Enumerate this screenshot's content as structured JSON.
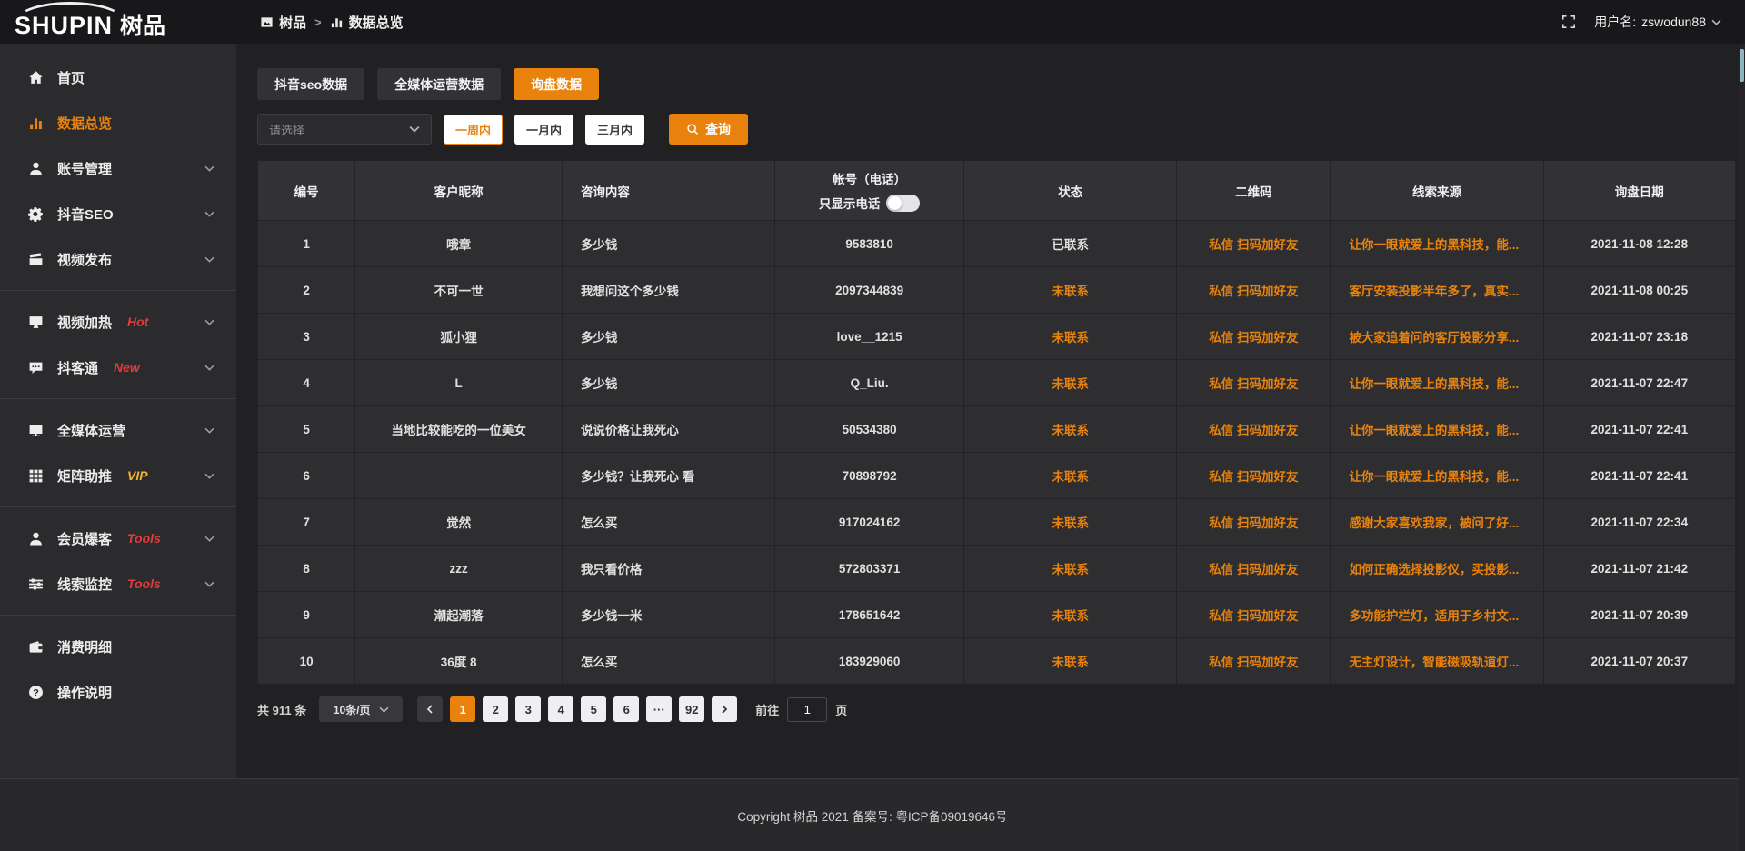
{
  "header": {
    "logo_text": "SHUPIN",
    "logo_cn": "树品",
    "breadcrumb": {
      "root": "树品",
      "sep": ">",
      "current": "数据总览"
    },
    "username_label": "用户名:",
    "username": "zswodun88"
  },
  "colors": {
    "accent_orange": "#e8820d",
    "badge_red": "#e23b3b",
    "badge_yellow": "#efb336"
  },
  "sidebar": {
    "items": [
      {
        "label": "首页",
        "icon": "home-icon"
      },
      {
        "label": "数据总览",
        "icon": "chart-icon",
        "active": true
      },
      {
        "label": "账号管理",
        "icon": "user-icon",
        "chevron": true
      },
      {
        "label": "抖音SEO",
        "icon": "gear-icon",
        "chevron": true
      },
      {
        "label": "视频发布",
        "icon": "video-icon",
        "chevron": true,
        "divider_after": true
      },
      {
        "label": "视频加热",
        "icon": "heat-icon",
        "badge": "Hot",
        "badge_color": "#e23b3b",
        "chevron": true
      },
      {
        "label": "抖客通",
        "icon": "chat-icon",
        "badge": "New",
        "badge_color": "#e23b3b",
        "chevron": true,
        "divider_after": true
      },
      {
        "label": "全媒体运营",
        "icon": "monitor-icon",
        "chevron": true
      },
      {
        "label": "矩阵助推",
        "icon": "grid-icon",
        "badge": "VIP",
        "badge_color": "#efb336",
        "chevron": true,
        "divider_after": true
      },
      {
        "label": "会员爆客",
        "icon": "member-icon",
        "badge": "Tools",
        "badge_color": "#e23b3b",
        "chevron": true
      },
      {
        "label": "线索监控",
        "icon": "sliders-icon",
        "badge": "Tools",
        "badge_color": "#e23b3b",
        "chevron": true,
        "divider_after": true
      },
      {
        "label": "消费明细",
        "icon": "wallet-icon"
      },
      {
        "label": "操作说明",
        "icon": "question-icon"
      }
    ]
  },
  "tabs": [
    {
      "label": "抖音seo数据"
    },
    {
      "label": "全媒体运营数据"
    },
    {
      "label": "询盘数据",
      "active": true
    }
  ],
  "filters": {
    "select_placeholder": "请选择",
    "period_buttons": [
      {
        "label": "一周内",
        "active": true
      },
      {
        "label": "一月内"
      },
      {
        "label": "三月内"
      }
    ],
    "search_label": "查询"
  },
  "table": {
    "headers": [
      "编号",
      "客户昵称",
      "咨询内容",
      "帐号（电话）",
      "状态",
      "二维码",
      "线索来源",
      "询盘日期"
    ],
    "toggle_label": "只显示电话",
    "rows": [
      {
        "id": "1",
        "nickname": "哦章",
        "content": "多少钱",
        "account": "9583810",
        "status": "已联系",
        "contacted": true,
        "qrcode": "私信 扫码加好友",
        "source": "让你一眼就爱上的黑科技，能...",
        "date": "2021-11-08 12:28"
      },
      {
        "id": "2",
        "nickname": "不可一世",
        "content": "我想问这个多少钱",
        "account": "2097344839",
        "status": "未联系",
        "qrcode": "私信 扫码加好友",
        "source": "客厅安装投影半年多了，真实...",
        "date": "2021-11-08 00:25"
      },
      {
        "id": "3",
        "nickname": "狐小狸",
        "content": "多少钱",
        "account": "love__1215",
        "status": "未联系",
        "qrcode": "私信 扫码加好友",
        "source": "被大家追着问的客厅投影分享...",
        "date": "2021-11-07 23:18"
      },
      {
        "id": "4",
        "nickname": "L",
        "content": "多少钱",
        "account": "Q_Liu.",
        "status": "未联系",
        "qrcode": "私信 扫码加好友",
        "source": "让你一眼就爱上的黑科技，能...",
        "date": "2021-11-07 22:47"
      },
      {
        "id": "5",
        "nickname": "当地比较能吃的一位美女",
        "content": "说说价格让我死心",
        "account": "50534380",
        "status": "未联系",
        "qrcode": "私信 扫码加好友",
        "source": "让你一眼就爱上的黑科技，能...",
        "date": "2021-11-07 22:41"
      },
      {
        "id": "6",
        "nickname": "",
        "content": "多少钱？让我死心 看",
        "account": "70898792",
        "status": "未联系",
        "qrcode": "私信 扫码加好友",
        "source": "让你一眼就爱上的黑科技，能...",
        "date": "2021-11-07 22:41"
      },
      {
        "id": "7",
        "nickname": "觉然",
        "content": "怎么买",
        "account": "917024162",
        "status": "未联系",
        "qrcode": "私信 扫码加好友",
        "source": "感谢大家喜欢我家，被问了好...",
        "date": "2021-11-07 22:34"
      },
      {
        "id": "8",
        "nickname": "zzz",
        "content": "我只看价格",
        "account": "572803371",
        "status": "未联系",
        "qrcode": "私信 扫码加好友",
        "source": "如何正确选择投影仪，买投影...",
        "date": "2021-11-07 21:42"
      },
      {
        "id": "9",
        "nickname": "潮起潮落",
        "content": "多少钱一米",
        "account": "178651642",
        "status": "未联系",
        "qrcode": "私信 扫码加好友",
        "source": "多功能护栏灯，适用于乡村文...",
        "date": "2021-11-07 20:39"
      },
      {
        "id": "10",
        "nickname": "36度 8",
        "content": "怎么买",
        "account": "183929060",
        "status": "未联系",
        "qrcode": "私信 扫码加好友",
        "source": "无主灯设计，智能磁吸轨道灯...",
        "date": "2021-11-07 20:37"
      }
    ]
  },
  "pagination": {
    "total_label": "共 911 条",
    "page_size": "10条/页",
    "pages": [
      {
        "label": "1",
        "active": true
      },
      {
        "label": "2"
      },
      {
        "label": "3"
      },
      {
        "label": "4"
      },
      {
        "label": "5"
      },
      {
        "label": "6"
      },
      {
        "label": "···"
      },
      {
        "label": "92"
      }
    ],
    "goto_label": "前往",
    "goto_value": "1",
    "goto_suffix": "页"
  },
  "footer": {
    "copyright": "Copyright 树品 2021 备案号: 粤ICP备09019646号"
  }
}
